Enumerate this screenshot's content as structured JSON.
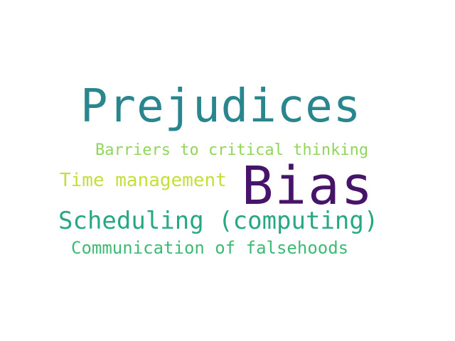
{
  "words": {
    "prejudices": {
      "text": "Prejudices",
      "color": "#2a868e"
    },
    "barriers": {
      "text": "Barriers to critical thinking",
      "color": "#8fd65a"
    },
    "time_management": {
      "text": "Time management",
      "color": "#c4df3a"
    },
    "bias": {
      "text": "Bias",
      "color": "#46156a"
    },
    "scheduling": {
      "text": "Scheduling (computing)",
      "color": "#26a883"
    },
    "communication": {
      "text": "Communication of falsehoods",
      "color": "#3dba75"
    }
  }
}
